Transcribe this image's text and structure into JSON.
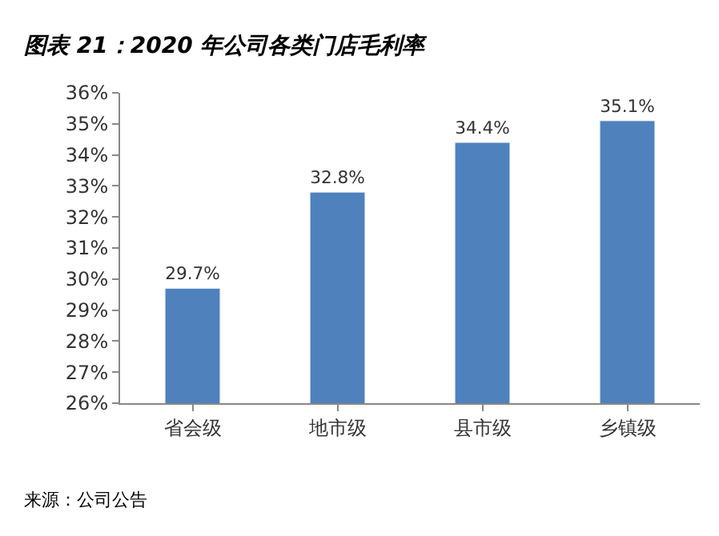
{
  "chart_data": {
    "type": "bar",
    "title": "图表 21：2020 年公司各类门店毛利率",
    "categories": [
      "省会级",
      "地市级",
      "县市级",
      "乡镇级"
    ],
    "values": [
      29.7,
      32.8,
      34.4,
      35.1
    ],
    "value_labels": [
      "29.7%",
      "32.8%",
      "34.4%",
      "35.1%"
    ],
    "color": "#4f81bd",
    "ylim": [
      26,
      36
    ],
    "yticks": [
      {
        "value": 26,
        "label": "26%"
      },
      {
        "value": 27,
        "label": "27%"
      },
      {
        "value": 28,
        "label": "28%"
      },
      {
        "value": 29,
        "label": "29%"
      },
      {
        "value": 30,
        "label": "30%"
      },
      {
        "value": 31,
        "label": "31%"
      },
      {
        "value": 32,
        "label": "32%"
      },
      {
        "value": 33,
        "label": "33%"
      },
      {
        "value": 34,
        "label": "34%"
      },
      {
        "value": 35,
        "label": "35%"
      },
      {
        "value": 36,
        "label": "36%"
      }
    ],
    "legend": false,
    "annotations": [
      "来源：公司公告"
    ]
  }
}
